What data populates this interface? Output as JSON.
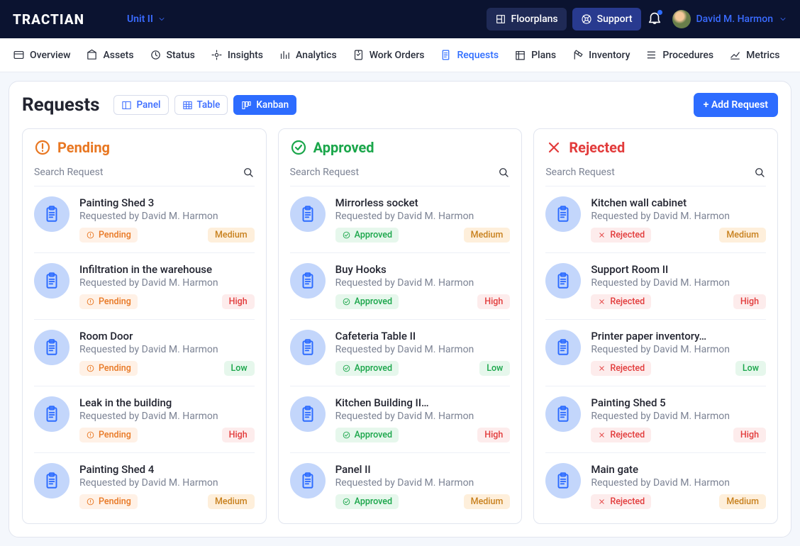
{
  "header": {
    "logo": "TRACTIAN",
    "unit": "Unit II",
    "floorplans": "Floorplans",
    "support": "Support",
    "user": "David M. Harmon"
  },
  "nav": {
    "items": [
      {
        "label": "Overview"
      },
      {
        "label": "Assets"
      },
      {
        "label": "Status"
      },
      {
        "label": "Insights"
      },
      {
        "label": "Analytics"
      },
      {
        "label": "Work Orders"
      },
      {
        "label": "Requests",
        "active": true
      },
      {
        "label": "Plans"
      },
      {
        "label": "Inventory"
      },
      {
        "label": "Procedures"
      },
      {
        "label": "Metrics"
      }
    ]
  },
  "page": {
    "title": "Requests",
    "views": {
      "panel": "Panel",
      "table": "Table",
      "kanban": "Kanban"
    },
    "add": "+ Add Request",
    "search_placeholder": "Search Request",
    "requested_by_prefix": "Requested by ",
    "requested_by_name": "David M. Harmon",
    "status_labels": {
      "Pending": "Pending",
      "Approved": "Approved",
      "Rejected": "Rejected"
    }
  },
  "columns": [
    {
      "key": "pending",
      "title": "Pending",
      "cards": [
        {
          "title": "Painting Shed 3",
          "priority": "Medium"
        },
        {
          "title": "Infiltration in the warehouse",
          "priority": "High"
        },
        {
          "title": "Room Door",
          "priority": "Low"
        },
        {
          "title": "Leak in the building",
          "priority": "High"
        },
        {
          "title": "Painting Shed 4",
          "priority": "Medium"
        }
      ]
    },
    {
      "key": "approved",
      "title": "Approved",
      "cards": [
        {
          "title": "Mirrorless socket",
          "priority": "Medium"
        },
        {
          "title": "Buy Hooks",
          "priority": "High"
        },
        {
          "title": "Cafeteria Table II",
          "priority": "Low"
        },
        {
          "title": "Kitchen Building II…",
          "priority": "High"
        },
        {
          "title": "Panel II",
          "priority": "Medium"
        }
      ]
    },
    {
      "key": "rejected",
      "title": "Rejected",
      "cards": [
        {
          "title": "Kitchen wall cabinet",
          "priority": "Medium"
        },
        {
          "title": "Support Room II",
          "priority": "High"
        },
        {
          "title": "Printer paper inventory…",
          "priority": "Low"
        },
        {
          "title": "Painting Shed 5",
          "priority": "High"
        },
        {
          "title": "Main gate",
          "priority": "Medium"
        }
      ]
    }
  ]
}
